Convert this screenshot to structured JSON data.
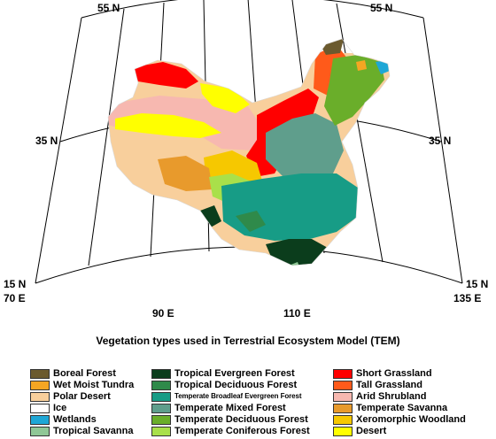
{
  "title": "Vegetation types used in Terrestrial Ecosystem Model (TEM)",
  "grid_labels": {
    "lat_55_left": "55 N",
    "lat_55_right": "55 N",
    "lat_35_left": "35 N",
    "lat_35_right": "35 N",
    "lat_15_left": "15 N",
    "lat_15_right": "15 N",
    "lon_70": "70 E",
    "lon_90": "90 E",
    "lon_110": "110 E",
    "lon_135": "135 E"
  },
  "legend": {
    "columns": [
      [
        {
          "label": "Boreal Forest",
          "color": "#6b5a2e"
        },
        {
          "label": "Wet Moist Tundra",
          "color": "#f5a623"
        },
        {
          "label": "Polar Desert",
          "color": "#f8cf9c"
        },
        {
          "label": "Ice",
          "color": "#ffffff"
        },
        {
          "label": "Wetlands",
          "color": "#1ea7d6"
        },
        {
          "label": "Tropical Savanna",
          "color": "#8fc796"
        }
      ],
      [
        {
          "label": "Tropical Evergreen Forest",
          "color": "#0b3d1c"
        },
        {
          "label": "Tropical Deciduous Forest",
          "color": "#2f8a4a"
        },
        {
          "label": "Temperate Broadleaf Evergreen Forest",
          "color": "#179c86"
        },
        {
          "label": "Temperate Mixed Forest",
          "color": "#5f9e8c"
        },
        {
          "label": "Temperate Deciduous Forest",
          "color": "#6aae2a"
        },
        {
          "label": "Temperate Coniferous Forest",
          "color": "#a9e04a"
        }
      ],
      [
        {
          "label": "Short Grassland",
          "color": "#ff0000"
        },
        {
          "label": "Tall Grassland",
          "color": "#ff5a1a"
        },
        {
          "label": "Arid Shrubland",
          "color": "#f7b8b0"
        },
        {
          "label": "Temperate Savanna",
          "color": "#e89a2c"
        },
        {
          "label": "Xeromorphic Woodland",
          "color": "#f6c800"
        },
        {
          "label": "Desert",
          "color": "#ffff00"
        }
      ]
    ]
  }
}
